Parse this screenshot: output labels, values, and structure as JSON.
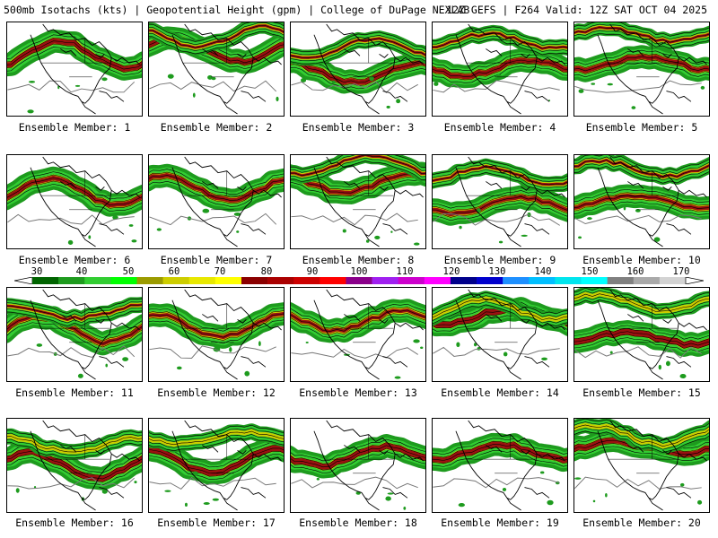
{
  "header": {
    "left": "500mb Isotachs (kts) | Geopotential Height (gpm) | College of DuPage NEXLAB",
    "right": "12Z GEFS | F264 Valid: 12Z SAT OCT 04 2025"
  },
  "colorbar": {
    "ticks": [
      "30",
      "40",
      "50",
      "60",
      "70",
      "80",
      "90",
      "100",
      "110",
      "120",
      "130",
      "140",
      "150",
      "160",
      "170"
    ],
    "colors": [
      "#006400",
      "#1e9b1e",
      "#32cd32",
      "#00ff00",
      "#9b9b00",
      "#cdcd00",
      "#e8e800",
      "#ffff00",
      "#8b0000",
      "#aa0000",
      "#cd0000",
      "#ff0000",
      "#8b008b",
      "#a020f0",
      "#cd00cd",
      "#ff00ff",
      "#00008b",
      "#0000cd",
      "#1e90ff",
      "#00bfff",
      "#00e5ee",
      "#00ffff",
      "#808080",
      "#a9a9a9",
      "#d3d3d3"
    ]
  },
  "members": [
    {
      "label": "Ensemble Member: 1"
    },
    {
      "label": "Ensemble Member: 2"
    },
    {
      "label": "Ensemble Member: 3"
    },
    {
      "label": "Ensemble Member: 4"
    },
    {
      "label": "Ensemble Member: 5"
    },
    {
      "label": "Ensemble Member: 6"
    },
    {
      "label": "Ensemble Member: 7"
    },
    {
      "label": "Ensemble Member: 8"
    },
    {
      "label": "Ensemble Member: 9"
    },
    {
      "label": "Ensemble Member: 10"
    },
    {
      "label": "Ensemble Member: 11"
    },
    {
      "label": "Ensemble Member: 12"
    },
    {
      "label": "Ensemble Member: 13"
    },
    {
      "label": "Ensemble Member: 14"
    },
    {
      "label": "Ensemble Member: 15"
    },
    {
      "label": "Ensemble Member: 16"
    },
    {
      "label": "Ensemble Member: 17"
    },
    {
      "label": "Ensemble Member: 18"
    },
    {
      "label": "Ensemble Member: 19"
    },
    {
      "label": "Ensemble Member: 20"
    }
  ]
}
